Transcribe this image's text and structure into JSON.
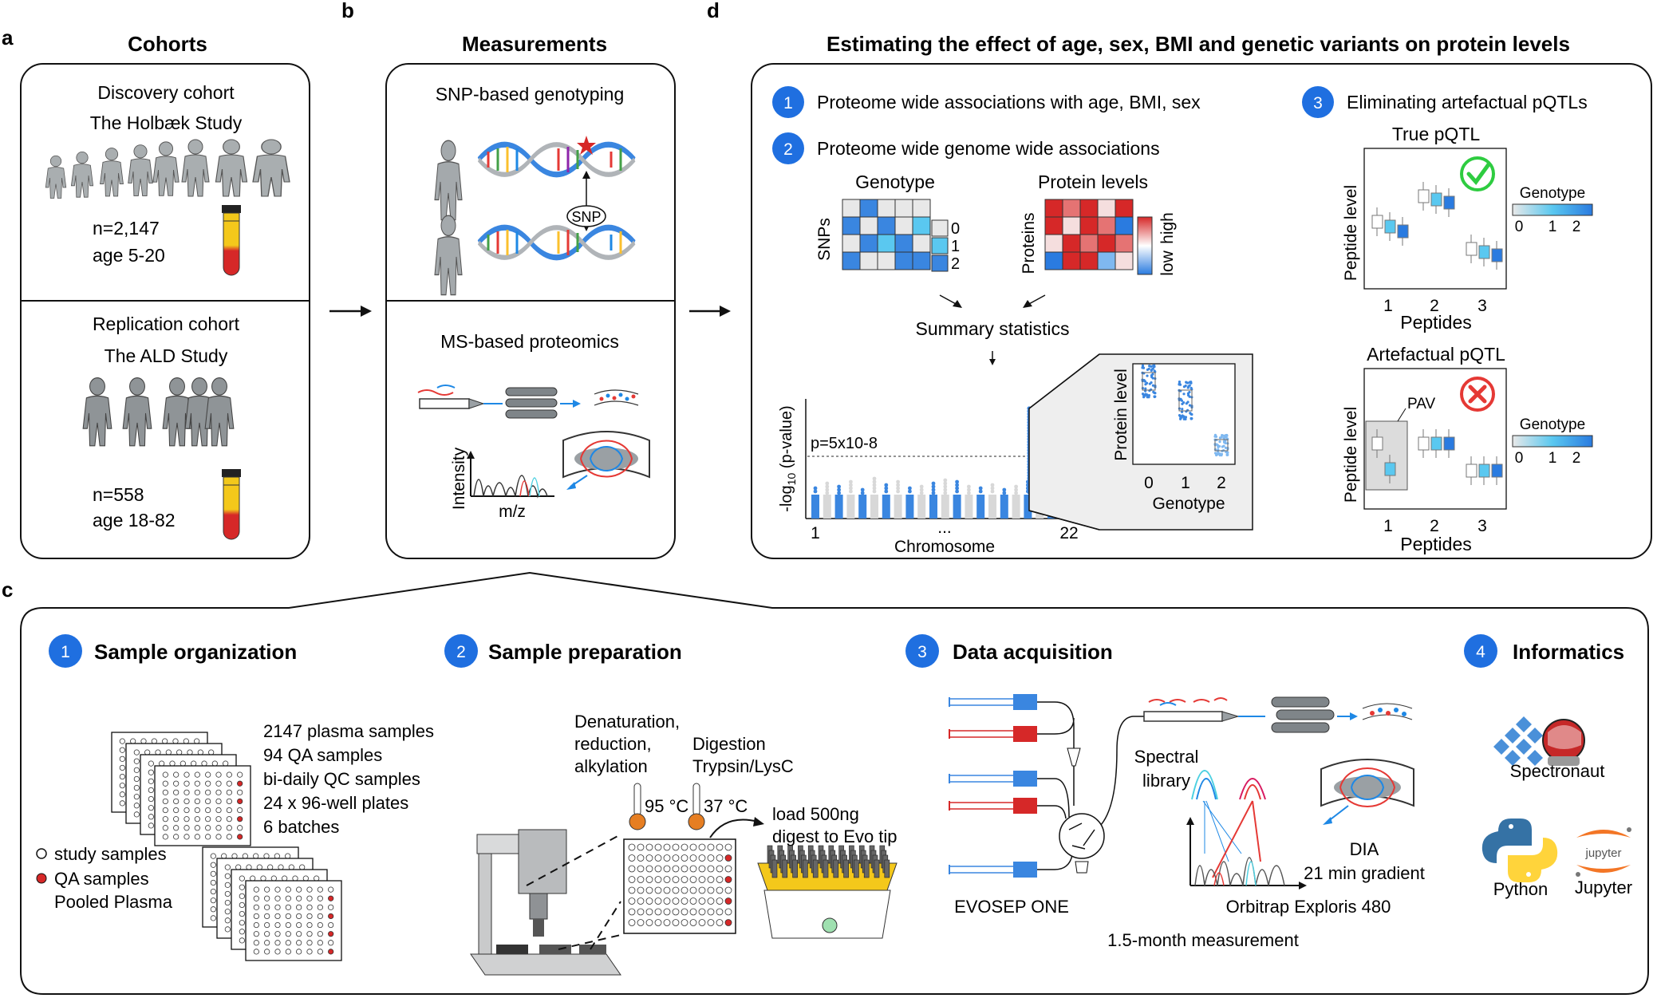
{
  "panels": {
    "a": {
      "letter": "a",
      "title": "Cohorts",
      "discovery": {
        "title": "Discovery cohort",
        "study": "The Holbæk Study",
        "n": "n=2,147",
        "age": "age 5-20"
      },
      "replication": {
        "title": "Replication cohort",
        "study": "The ALD Study",
        "n": "n=558",
        "age": "age 18-82"
      }
    },
    "b": {
      "letter": "b",
      "title": "Measurements",
      "genotyping": "SNP-based genotyping",
      "snp_label": "SNP",
      "proteomics": "MS-based proteomics",
      "ms_ylabel": "Intensity",
      "ms_xlabel": "m/z"
    },
    "c": {
      "letter": "c",
      "steps": [
        {
          "num": "1",
          "title": "Sample organization"
        },
        {
          "num": "2",
          "title": "Sample preparation"
        },
        {
          "num": "3",
          "title": "Data acquisition"
        },
        {
          "num": "4",
          "title": "Informatics"
        }
      ],
      "org_lines": [
        "2147 plasma samples",
        "94 QA samples",
        "bi-daily QC samples",
        "24 x 96-well plates",
        "6 batches"
      ],
      "legend": {
        "study": "study samples",
        "qa": "QA samples",
        "pooled": "Pooled Plasma"
      },
      "prep": {
        "denat": [
          "Denaturation,",
          "reduction,",
          "alkylation"
        ],
        "digest": [
          "Digestion",
          "Trypsin/LysC"
        ],
        "temp1": "95 °C",
        "temp2": "37 °C",
        "load": [
          "load 500ng",
          "digest to Evo tip"
        ]
      },
      "acq": {
        "spectral": [
          "Spectral",
          "library"
        ],
        "dia": [
          "DIA",
          "21 min gradient"
        ],
        "evosep": "EVOSEP ONE",
        "orbitrap": "Orbitrap Exploris 480",
        "duration": "1.5-month measurement"
      },
      "informatics": {
        "spectronaut": "Spectronaut",
        "python": "Python",
        "jupyter": "Jupyter",
        "jupyter_logo": "jupyter"
      }
    },
    "d": {
      "letter": "d",
      "title": "Estimating the effect of age, sex, BMI and genetic variants on protein levels",
      "step1": {
        "num": "1",
        "label": "Proteome wide associations with age, BMI, sex"
      },
      "step2": {
        "num": "2",
        "label": "Proteome wide genome wide associations"
      },
      "step3": {
        "num": "3",
        "label": "Eliminating artefactual pQTLs"
      },
      "genotype_heatmap": {
        "title": "Genotype",
        "ylabel": "SNPs",
        "legend": [
          "0",
          "1",
          "2"
        ]
      },
      "protein_heatmap": {
        "title": "Protein levels",
        "ylabel": "Proteins",
        "low": "low",
        "high": "high"
      },
      "summary": "Summary statistics",
      "manhattan": {
        "ylabel_pre": "-log",
        "ylabel_sub": "10",
        "ylabel_post": " (p-value)",
        "threshold": "p=5x10-8",
        "x_first": "1",
        "x_mid": "...",
        "x_last": "22",
        "xlabel": "Chromosome"
      },
      "inset": {
        "ylabel": "Protein level",
        "xlabel": "Genotype",
        "ticks": [
          "0",
          "1",
          "2"
        ]
      },
      "true_pqtl": {
        "title": "True pQTL",
        "ylabel": "Peptide level",
        "xlabel": "Peptides",
        "ticks": [
          "1",
          "2",
          "3"
        ],
        "legend_title": "Genotype",
        "legend_ticks": [
          "0",
          "1",
          "2"
        ]
      },
      "art_pqtl": {
        "title": "Artefactual pQTL",
        "ylabel": "Peptide level",
        "xlabel": "Peptides",
        "ticks": [
          "1",
          "2",
          "3"
        ],
        "pav": "PAV",
        "legend_title": "Genotype",
        "legend_ticks": [
          "0",
          "1",
          "2"
        ]
      }
    }
  },
  "colors": {
    "badge": "#1f6fe0",
    "light_blue": "#5ac8f0",
    "mid_blue": "#3a86e0",
    "grey": "#e6e6e6",
    "red": "#d62828",
    "yellow": "#f2c81b",
    "dna_blue": "#3a86e0",
    "person": "#9ea3a6",
    "green": "#2ecc40"
  }
}
